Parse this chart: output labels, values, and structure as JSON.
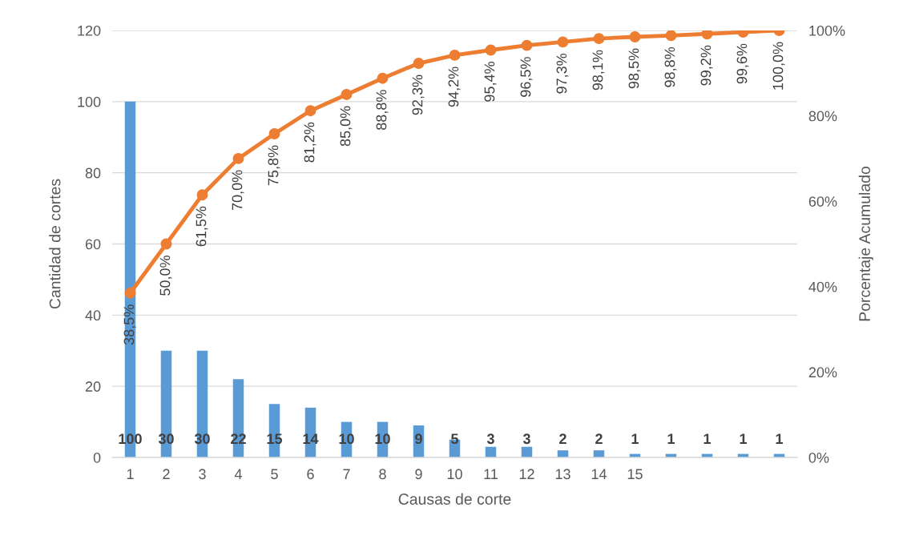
{
  "chart_data": {
    "type": "bar",
    "xlabel": "Causas de corte",
    "ylabel": "Cantidad de cortes",
    "y2label": "Porcentaje Acumulado",
    "categories": [
      "1",
      "2",
      "3",
      "4",
      "5",
      "6",
      "7",
      "8",
      "9",
      "10",
      "11",
      "12",
      "13",
      "14",
      "15",
      null,
      null,
      null,
      null
    ],
    "series": [
      {
        "color": "#5b9bd5",
        "values": [
          100,
          30,
          30,
          22,
          15,
          14,
          10,
          10,
          9,
          5,
          3,
          3,
          2,
          2,
          1,
          1,
          1,
          1,
          1
        ],
        "data_labels": true
      },
      {
        "type": "line",
        "axis": "y2",
        "color": "#ed7d31",
        "marker": "circle",
        "values": [
          38.5,
          50.0,
          61.5,
          70.0,
          75.8,
          81.2,
          85.0,
          88.8,
          92.3,
          94.2,
          95.4,
          96.5,
          97.3,
          98.1,
          98.5,
          98.8,
          99.2,
          99.6,
          100.0
        ],
        "value_labels": [
          "38,5%",
          "50,0%",
          "61,5%",
          "70,0%",
          "75,8%",
          "81,2%",
          "85,0%",
          "88,8%",
          "92,3%",
          "94,2%",
          "95,4%",
          "96,5%",
          "97,3%",
          "98,1%",
          "98,5%",
          "98,8%",
          "99,2%",
          "99,6%",
          "100,0%"
        ]
      }
    ],
    "ylim": [
      0,
      120
    ],
    "yticks": [
      0,
      20,
      40,
      60,
      80,
      100,
      120
    ],
    "y2lim": [
      0,
      100
    ],
    "y2ticks": [
      {
        "value": 0,
        "label": "0%"
      },
      {
        "value": 20,
        "label": "20%"
      },
      {
        "value": 40,
        "label": "40%"
      },
      {
        "value": 60,
        "label": "60%"
      },
      {
        "value": 80,
        "label": "80%"
      },
      {
        "value": 100,
        "label": "100%"
      }
    ],
    "grid": "y"
  }
}
